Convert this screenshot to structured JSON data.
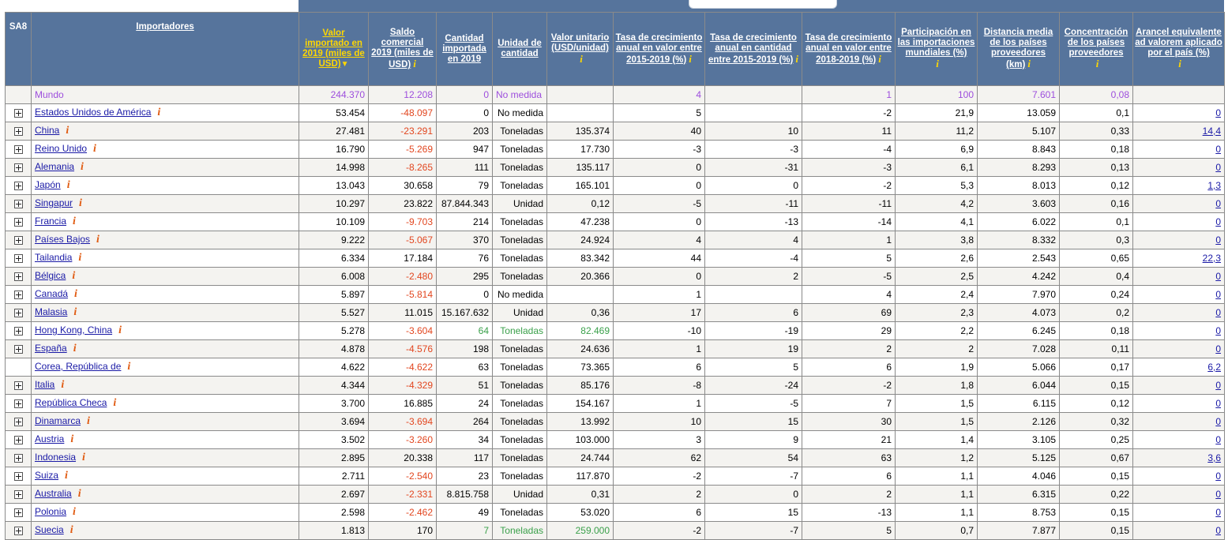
{
  "headers": {
    "sa8": "SA8",
    "importadores": "Importadores",
    "valor_importado": "Valor importado en 2019 (miles de USD)",
    "saldo": "Saldo comercial 2019 (miles de USD)",
    "cantidad": "Cantidad importada en 2019",
    "unidad": "Unidad de cantidad",
    "valor_unitario": "Valor unitario (USD/unidad)",
    "tasa_valor_15_19": "Tasa de crecimiento anual en valor entre 2015-2019 (%)",
    "tasa_cant_15_19": "Tasa de crecimiento anual en cantidad entre 2015-2019 (%)",
    "tasa_valor_18_19": "Tasa de crecimiento anual en valor entre 2018-2019 (%)",
    "participacion": "Participación en las importaciones mundiales (%)",
    "distancia": "Distancia media de los países proveedores (km)",
    "concentracion": "Concentración de los países proveedores",
    "arancel": "Arancel equivalente ad valorem aplicado por el país (%)",
    "info_glyph": "i",
    "sort_arrow": "▼"
  },
  "colors": {
    "header_bg": "#56749c",
    "active_header_text": "#ffd700",
    "negative": "#e2461f",
    "green": "#3aa04a",
    "world_text": "#9d4edd",
    "link": "#1a1aa6",
    "info_icon": "#e05a10"
  },
  "world": {
    "name": "Mundo",
    "valor": "244.370",
    "saldo": "12.208",
    "cantidad": "0",
    "unidad": "No medida",
    "valor_unitario": "",
    "tasa_v1519": "4",
    "tasa_c1519": "",
    "tasa_v1819": "1",
    "participacion": "100",
    "distancia": "7.601",
    "concentracion": "0,08",
    "arancel": ""
  },
  "rows": [
    {
      "name": "Estados Unidos de América",
      "exp": true,
      "valor": "53.454",
      "saldo": "-48.097",
      "cantidad": "0",
      "unidad": "No medida",
      "vu": "",
      "t1": "5",
      "t2": "",
      "t3": "-2",
      "part": "21,9",
      "dist": "13.059",
      "conc": "0,1",
      "ar": "0",
      "green": false
    },
    {
      "name": "China",
      "exp": true,
      "valor": "27.481",
      "saldo": "-23.291",
      "cantidad": "203",
      "unidad": "Toneladas",
      "vu": "135.374",
      "t1": "40",
      "t2": "10",
      "t3": "11",
      "part": "11,2",
      "dist": "5.107",
      "conc": "0,33",
      "ar": "14,4",
      "green": false
    },
    {
      "name": "Reino Unido",
      "exp": true,
      "valor": "16.790",
      "saldo": "-5.269",
      "cantidad": "947",
      "unidad": "Toneladas",
      "vu": "17.730",
      "t1": "-3",
      "t2": "-3",
      "t3": "-4",
      "part": "6,9",
      "dist": "8.843",
      "conc": "0,18",
      "ar": "0",
      "green": false
    },
    {
      "name": "Alemania",
      "exp": true,
      "valor": "14.998",
      "saldo": "-8.265",
      "cantidad": "111",
      "unidad": "Toneladas",
      "vu": "135.117",
      "t1": "0",
      "t2": "-31",
      "t3": "-3",
      "part": "6,1",
      "dist": "8.293",
      "conc": "0,13",
      "ar": "0",
      "green": false
    },
    {
      "name": "Japón",
      "exp": true,
      "valor": "13.043",
      "saldo": "30.658",
      "cantidad": "79",
      "unidad": "Toneladas",
      "vu": "165.101",
      "t1": "0",
      "t2": "0",
      "t3": "-2",
      "part": "5,3",
      "dist": "8.013",
      "conc": "0,12",
      "ar": "1,3",
      "green": false
    },
    {
      "name": "Singapur",
      "exp": true,
      "valor": "10.297",
      "saldo": "23.822",
      "cantidad": "87.844.343",
      "unidad": "Unidad",
      "vu": "0,12",
      "t1": "-5",
      "t2": "-11",
      "t3": "-11",
      "part": "4,2",
      "dist": "3.603",
      "conc": "0,16",
      "ar": "0",
      "green": false
    },
    {
      "name": "Francia",
      "exp": true,
      "valor": "10.109",
      "saldo": "-9.703",
      "cantidad": "214",
      "unidad": "Toneladas",
      "vu": "47.238",
      "t1": "0",
      "t2": "-13",
      "t3": "-14",
      "part": "4,1",
      "dist": "6.022",
      "conc": "0,1",
      "ar": "0",
      "green": false
    },
    {
      "name": "Países Bajos",
      "exp": true,
      "valor": "9.222",
      "saldo": "-5.067",
      "cantidad": "370",
      "unidad": "Toneladas",
      "vu": "24.924",
      "t1": "4",
      "t2": "4",
      "t3": "1",
      "part": "3,8",
      "dist": "8.332",
      "conc": "0,3",
      "ar": "0",
      "green": false
    },
    {
      "name": "Tailandia",
      "exp": true,
      "valor": "6.334",
      "saldo": "17.184",
      "cantidad": "76",
      "unidad": "Toneladas",
      "vu": "83.342",
      "t1": "44",
      "t2": "-4",
      "t3": "5",
      "part": "2,6",
      "dist": "2.543",
      "conc": "0,65",
      "ar": "22,3",
      "green": false
    },
    {
      "name": "Bélgica",
      "exp": true,
      "valor": "6.008",
      "saldo": "-2.480",
      "cantidad": "295",
      "unidad": "Toneladas",
      "vu": "20.366",
      "t1": "0",
      "t2": "2",
      "t3": "-5",
      "part": "2,5",
      "dist": "4.242",
      "conc": "0,4",
      "ar": "0",
      "green": false
    },
    {
      "name": "Canadá",
      "exp": true,
      "valor": "5.897",
      "saldo": "-5.814",
      "cantidad": "0",
      "unidad": "No medida",
      "vu": "",
      "t1": "1",
      "t2": "",
      "t3": "4",
      "part": "2,4",
      "dist": "7.970",
      "conc": "0,24",
      "ar": "0",
      "green": false
    },
    {
      "name": "Malasia",
      "exp": true,
      "valor": "5.527",
      "saldo": "11.015",
      "cantidad": "15.167.632",
      "unidad": "Unidad",
      "vu": "0,36",
      "t1": "17",
      "t2": "6",
      "t3": "69",
      "part": "2,3",
      "dist": "4.073",
      "conc": "0,2",
      "ar": "0",
      "green": false
    },
    {
      "name": "Hong Kong, China",
      "exp": true,
      "valor": "5.278",
      "saldo": "-3.604",
      "cantidad": "64",
      "unidad": "Toneladas",
      "vu": "82.469",
      "t1": "-10",
      "t2": "-19",
      "t3": "29",
      "part": "2,2",
      "dist": "6.245",
      "conc": "0,18",
      "ar": "0",
      "green": true
    },
    {
      "name": "España",
      "exp": true,
      "valor": "4.878",
      "saldo": "-4.576",
      "cantidad": "198",
      "unidad": "Toneladas",
      "vu": "24.636",
      "t1": "1",
      "t2": "19",
      "t3": "2",
      "part": "2",
      "dist": "7.028",
      "conc": "0,11",
      "ar": "0",
      "green": false
    },
    {
      "name": "Corea, República de",
      "exp": false,
      "valor": "4.622",
      "saldo": "-4.622",
      "cantidad": "63",
      "unidad": "Toneladas",
      "vu": "73.365",
      "t1": "6",
      "t2": "5",
      "t3": "6",
      "part": "1,9",
      "dist": "5.066",
      "conc": "0,17",
      "ar": "6,2",
      "green": false
    },
    {
      "name": "Italia",
      "exp": true,
      "valor": "4.344",
      "saldo": "-4.329",
      "cantidad": "51",
      "unidad": "Toneladas",
      "vu": "85.176",
      "t1": "-8",
      "t2": "-24",
      "t3": "-2",
      "part": "1,8",
      "dist": "6.044",
      "conc": "0,15",
      "ar": "0",
      "green": false
    },
    {
      "name": "República Checa",
      "exp": true,
      "valor": "3.700",
      "saldo": "16.885",
      "cantidad": "24",
      "unidad": "Toneladas",
      "vu": "154.167",
      "t1": "1",
      "t2": "-5",
      "t3": "7",
      "part": "1,5",
      "dist": "6.115",
      "conc": "0,12",
      "ar": "0",
      "green": false
    },
    {
      "name": "Dinamarca",
      "exp": true,
      "valor": "3.694",
      "saldo": "-3.694",
      "cantidad": "264",
      "unidad": "Toneladas",
      "vu": "13.992",
      "t1": "10",
      "t2": "15",
      "t3": "30",
      "part": "1,5",
      "dist": "2.126",
      "conc": "0,32",
      "ar": "0",
      "green": false
    },
    {
      "name": "Austria",
      "exp": true,
      "valor": "3.502",
      "saldo": "-3.260",
      "cantidad": "34",
      "unidad": "Toneladas",
      "vu": "103.000",
      "t1": "3",
      "t2": "9",
      "t3": "21",
      "part": "1,4",
      "dist": "3.105",
      "conc": "0,25",
      "ar": "0",
      "green": false
    },
    {
      "name": "Indonesia",
      "exp": true,
      "valor": "2.895",
      "saldo": "20.338",
      "cantidad": "117",
      "unidad": "Toneladas",
      "vu": "24.744",
      "t1": "62",
      "t2": "54",
      "t3": "63",
      "part": "1,2",
      "dist": "5.125",
      "conc": "0,67",
      "ar": "3,6",
      "green": false
    },
    {
      "name": "Suiza",
      "exp": true,
      "valor": "2.711",
      "saldo": "-2.540",
      "cantidad": "23",
      "unidad": "Toneladas",
      "vu": "117.870",
      "t1": "-2",
      "t2": "-7",
      "t3": "6",
      "part": "1,1",
      "dist": "4.046",
      "conc": "0,15",
      "ar": "0",
      "green": false
    },
    {
      "name": "Australia",
      "exp": true,
      "valor": "2.697",
      "saldo": "-2.331",
      "cantidad": "8.815.758",
      "unidad": "Unidad",
      "vu": "0,31",
      "t1": "2",
      "t2": "0",
      "t3": "2",
      "part": "1,1",
      "dist": "6.315",
      "conc": "0,22",
      "ar": "0",
      "green": false
    },
    {
      "name": "Polonia",
      "exp": true,
      "valor": "2.598",
      "saldo": "-2.462",
      "cantidad": "49",
      "unidad": "Toneladas",
      "vu": "53.020",
      "t1": "6",
      "t2": "15",
      "t3": "-13",
      "part": "1,1",
      "dist": "8.753",
      "conc": "0,15",
      "ar": "0",
      "green": false
    },
    {
      "name": "Suecia",
      "exp": true,
      "valor": "1.813",
      "saldo": "170",
      "cantidad": "7",
      "unidad": "Toneladas",
      "vu": "259.000",
      "t1": "-2",
      "t2": "-7",
      "t3": "5",
      "part": "0,7",
      "dist": "7.877",
      "conc": "0,15",
      "ar": "0",
      "green": true
    }
  ]
}
